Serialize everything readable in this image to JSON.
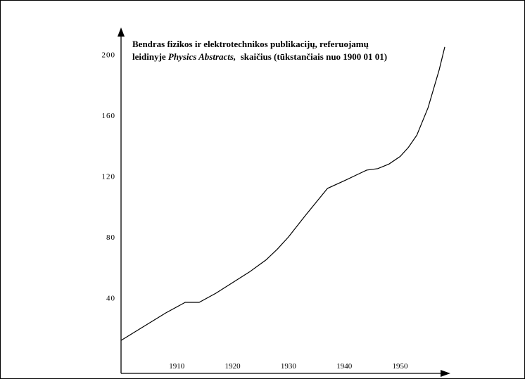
{
  "chart_data": {
    "type": "line",
    "title_line1": "Bendras fizikos ir elektrotechnikos publikacijų, referuojamų",
    "title_line2_prefix": "leidinyje ",
    "title_line2_italic": "Physics Abstracts,",
    "title_line2_suffix": "  skaičius (tūkstančiais nuo 1900 01 01)",
    "xlabel": "",
    "ylabel": "",
    "x_ticks": [
      1910,
      1920,
      1930,
      1940,
      1950
    ],
    "y_ticks": [
      40,
      80,
      120,
      160,
      200
    ],
    "xlim": [
      1900,
      1958
    ],
    "ylim": [
      0,
      210
    ],
    "grid": false,
    "series": [
      {
        "x": [
          1900,
          1904,
          1908,
          1911.5,
          1914,
          1917,
          1920,
          1923,
          1926,
          1928,
          1930,
          1933,
          1937,
          1940,
          1944,
          1946,
          1948,
          1950,
          1951.5,
          1953,
          1955,
          1957,
          1958
        ],
        "values": [
          12,
          21,
          30,
          37,
          37,
          43,
          50,
          57,
          65,
          72,
          80,
          94,
          112,
          117,
          124,
          125,
          128,
          133,
          139,
          147,
          165,
          190,
          205
        ]
      }
    ]
  }
}
